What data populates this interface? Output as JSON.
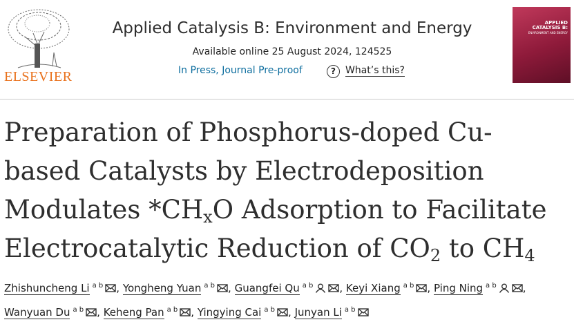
{
  "header": {
    "publisher": "ELSEVIER",
    "journal": "Applied Catalysis B: Environment and Energy",
    "availability": "Available online 25 August 2024, 124525",
    "status": "In Press, Journal Pre-proof",
    "help_icon": "?",
    "help": "What’s this?",
    "cover": {
      "title": "APPLIED CATALYSIS B:",
      "subtitle": "ENVIRONMENT AND ENERGY"
    }
  },
  "article": {
    "title": [
      "Preparation of Phosphorus-doped Cu-based Catalysts by Electrodeposition Modulates *CH",
      "x",
      "O Adsorption to Facilitate Electrocatalytic Reduction of CO",
      "2",
      " to CH",
      "4"
    ],
    "authors": {
      "separator": ",",
      "list": [
        {
          "name": "Zhishuncheng Li",
          "affiliations": "a b",
          "corresponding": false
        },
        {
          "name": "Yongheng Yuan",
          "affiliations": "a b",
          "corresponding": false
        },
        {
          "name": "Guangfei Qu",
          "affiliations": "a b",
          "corresponding": true
        },
        {
          "name": "Keyi Xiang",
          "affiliations": "a b",
          "corresponding": false
        },
        {
          "name": "Ping Ning",
          "affiliations": "a b",
          "corresponding": true
        },
        {
          "name": "Wanyuan Du",
          "affiliations": "a b",
          "corresponding": false
        },
        {
          "name": "Keheng Pan",
          "affiliations": "a b",
          "corresponding": false
        },
        {
          "name": "Yingying Cai",
          "affiliations": "a b",
          "corresponding": false
        },
        {
          "name": "Junyan Li",
          "affiliations": "a b",
          "corresponding": false
        }
      ]
    }
  }
}
